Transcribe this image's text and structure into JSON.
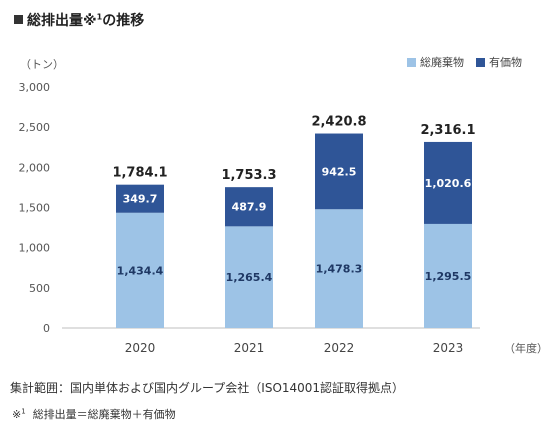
{
  "title": {
    "main": "総排出量",
    "mark": "※",
    "sup": "1",
    "suffix": "の推移"
  },
  "unit_label": "（トン）",
  "year_unit": "（年度）",
  "legend": [
    {
      "name": "総廃棄物",
      "color": "#9dc3e6"
    },
    {
      "name": "有価物",
      "color": "#2f5597"
    }
  ],
  "chart_data": {
    "type": "bar",
    "stacked": true,
    "categories": [
      "2020",
      "2021",
      "2022",
      "2023"
    ],
    "series": [
      {
        "name": "総廃棄物",
        "color": "#9dc3e6",
        "values": [
          1434.4,
          1265.4,
          1478.3,
          1295.5
        ],
        "labels": [
          "1,434.4",
          "1,265.4",
          "1,478.3",
          "1,295.5"
        ]
      },
      {
        "name": "有価物",
        "color": "#2f5597",
        "values": [
          349.7,
          487.9,
          942.5,
          1020.6
        ],
        "labels": [
          "349.7",
          "487.9",
          "942.5",
          "1,020.6"
        ]
      }
    ],
    "totals": [
      1784.1,
      1753.3,
      2420.8,
      2316.1
    ],
    "total_labels": [
      "1,784.1",
      "1,753.3",
      "2,420.8",
      "2,316.1"
    ],
    "ylim": [
      0,
      3000
    ],
    "yticks": [
      0,
      500,
      1000,
      1500,
      2000,
      2500,
      3000
    ],
    "ytick_labels": [
      "0",
      "500",
      "1,000",
      "1,500",
      "2,000",
      "2,500",
      "3,000"
    ],
    "ylabel": "（トン）",
    "xlabel": "（年度）",
    "legend_position": "top-right",
    "grid": false
  },
  "notes": {
    "scope": "集計範囲：国内単体および国内グループ会社（ISO14001認証取得拠点）",
    "footnote_mark": "※",
    "footnote_sup": "1",
    "footnote_text": "総排出量＝総廃棄物＋有価物"
  }
}
